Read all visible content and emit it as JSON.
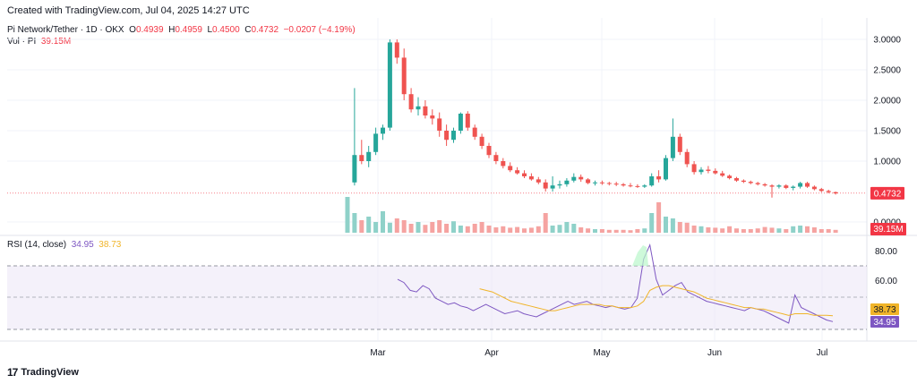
{
  "header": {
    "created": "Created with TradingView.com, Jul 04, 2025 14:27 UTC"
  },
  "legend": {
    "symbol": "Pi Network/Tether · 1D · OKX",
    "o_label": "O",
    "o_value": "0.4939",
    "h_label": "H",
    "h_value": "0.4959",
    "l_label": "L",
    "l_value": "0.4500",
    "c_label": "C",
    "c_value": "0.4732",
    "change": "−0.0207 (−4.19%)",
    "vol_label": "Vol · PI",
    "vol_value": "39.15M"
  },
  "rsi_legend": {
    "label": "RSI (14, close)",
    "rsi_value": "34.95",
    "ma_value": "38.73"
  },
  "brand": {
    "logo": "17",
    "name": "TradingView"
  },
  "colors": {
    "up": "#26a69a",
    "down": "#ef5350",
    "vol_up": "#8fd1c9",
    "vol_down": "#f5a3a1",
    "rsi": "#7e57c2",
    "rsi_ma": "#f0b429",
    "last_price": "#f23645"
  },
  "chart_data": {
    "type": "candlestick",
    "x_labels": [
      "Mar",
      "Apr",
      "May",
      "Jun",
      "Jul"
    ],
    "price_axis": [
      "3.0000",
      "2.5000",
      "2.0000",
      "1.5000",
      "1.0000",
      "0.0000"
    ],
    "price_range": [
      0,
      3
    ],
    "last_price_label": "0.4732",
    "volume_label": "39.15M",
    "rsi_axis": [
      "80.00",
      "60.00"
    ],
    "rsi_range": [
      30,
      85
    ],
    "rsi_badges": {
      "ma": "38.73",
      "rsi": "34.95"
    },
    "candles": [
      [
        0.0,
        0.0,
        0.0,
        0.0
      ],
      [
        0.65,
        2.2,
        0.6,
        1.1
      ],
      [
        1.1,
        1.35,
        0.95,
        1.0
      ],
      [
        1.0,
        1.25,
        0.9,
        1.15
      ],
      [
        1.15,
        1.55,
        1.1,
        1.45
      ],
      [
        1.45,
        1.6,
        1.35,
        1.55
      ],
      [
        1.55,
        3.0,
        1.5,
        2.95
      ],
      [
        2.95,
        3.0,
        2.6,
        2.7
      ],
      [
        2.7,
        2.85,
        2.0,
        2.1
      ],
      [
        2.1,
        2.2,
        1.8,
        1.85
      ],
      [
        1.85,
        2.05,
        1.75,
        1.9
      ],
      [
        1.9,
        2.0,
        1.7,
        1.75
      ],
      [
        1.75,
        1.85,
        1.6,
        1.7
      ],
      [
        1.7,
        1.8,
        1.4,
        1.5
      ],
      [
        1.5,
        1.6,
        1.25,
        1.35
      ],
      [
        1.35,
        1.55,
        1.3,
        1.5
      ],
      [
        1.5,
        1.8,
        1.45,
        1.78
      ],
      [
        1.78,
        1.82,
        1.5,
        1.55
      ],
      [
        1.55,
        1.6,
        1.35,
        1.4
      ],
      [
        1.4,
        1.45,
        1.2,
        1.25
      ],
      [
        1.25,
        1.3,
        1.05,
        1.1
      ],
      [
        1.1,
        1.15,
        0.95,
        1.0
      ],
      [
        1.0,
        1.05,
        0.88,
        0.92
      ],
      [
        0.92,
        0.98,
        0.82,
        0.85
      ],
      [
        0.85,
        0.9,
        0.78,
        0.8
      ],
      [
        0.8,
        0.85,
        0.72,
        0.75
      ],
      [
        0.75,
        0.8,
        0.68,
        0.7
      ],
      [
        0.7,
        0.74,
        0.62,
        0.65
      ],
      [
        0.65,
        0.7,
        0.5,
        0.55
      ],
      [
        0.55,
        0.75,
        0.5,
        0.6
      ],
      [
        0.6,
        0.68,
        0.55,
        0.62
      ],
      [
        0.62,
        0.72,
        0.58,
        0.68
      ],
      [
        0.68,
        0.8,
        0.65,
        0.74
      ],
      [
        0.74,
        0.78,
        0.66,
        0.7
      ],
      [
        0.7,
        0.72,
        0.62,
        0.64
      ],
      [
        0.64,
        0.68,
        0.6,
        0.65
      ],
      [
        0.65,
        0.68,
        0.61,
        0.64
      ],
      [
        0.64,
        0.66,
        0.6,
        0.63
      ],
      [
        0.63,
        0.66,
        0.59,
        0.62
      ],
      [
        0.62,
        0.64,
        0.58,
        0.6
      ],
      [
        0.6,
        0.64,
        0.57,
        0.59
      ],
      [
        0.59,
        0.62,
        0.56,
        0.58
      ],
      [
        0.58,
        0.62,
        0.56,
        0.6
      ],
      [
        0.6,
        0.8,
        0.58,
        0.75
      ],
      [
        0.75,
        0.85,
        0.65,
        0.7
      ],
      [
        0.7,
        1.1,
        0.68,
        1.05
      ],
      [
        1.05,
        1.7,
        1.0,
        1.4
      ],
      [
        1.4,
        1.45,
        1.1,
        1.15
      ],
      [
        1.15,
        1.2,
        0.9,
        0.95
      ],
      [
        0.95,
        1.0,
        0.78,
        0.82
      ],
      [
        0.82,
        0.9,
        0.78,
        0.86
      ],
      [
        0.86,
        0.92,
        0.8,
        0.84
      ],
      [
        0.84,
        0.88,
        0.78,
        0.8
      ],
      [
        0.8,
        0.84,
        0.74,
        0.76
      ],
      [
        0.76,
        0.78,
        0.7,
        0.72
      ],
      [
        0.72,
        0.74,
        0.66,
        0.68
      ],
      [
        0.68,
        0.7,
        0.64,
        0.66
      ],
      [
        0.66,
        0.68,
        0.62,
        0.64
      ],
      [
        0.64,
        0.66,
        0.6,
        0.62
      ],
      [
        0.62,
        0.64,
        0.58,
        0.6
      ],
      [
        0.6,
        0.62,
        0.4,
        0.58
      ],
      [
        0.58,
        0.62,
        0.55,
        0.6
      ],
      [
        0.6,
        0.62,
        0.54,
        0.56
      ],
      [
        0.56,
        0.6,
        0.52,
        0.58
      ],
      [
        0.58,
        0.66,
        0.55,
        0.64
      ],
      [
        0.64,
        0.66,
        0.56,
        0.58
      ],
      [
        0.58,
        0.6,
        0.52,
        0.54
      ],
      [
        0.54,
        0.56,
        0.49,
        0.51
      ],
      [
        0.51,
        0.53,
        0.47,
        0.49
      ],
      [
        0.49,
        0.5,
        0.45,
        0.47
      ]
    ],
    "volumes": [
      1.0,
      0.55,
      0.35,
      0.45,
      0.3,
      0.6,
      0.28,
      0.4,
      0.35,
      0.25,
      0.3,
      0.22,
      0.3,
      0.35,
      0.25,
      0.32,
      0.2,
      0.18,
      0.25,
      0.3,
      0.2,
      0.15,
      0.18,
      0.14,
      0.16,
      0.12,
      0.14,
      0.18,
      0.55,
      0.2,
      0.22,
      0.3,
      0.25,
      0.15,
      0.12,
      0.1,
      0.1,
      0.08,
      0.08,
      0.08,
      0.07,
      0.1,
      0.12,
      0.55,
      0.85,
      0.45,
      0.4,
      0.3,
      0.28,
      0.2,
      0.18,
      0.15,
      0.14,
      0.12,
      0.18,
      0.12,
      0.1,
      0.1,
      0.12,
      0.16,
      0.14,
      0.12,
      0.1,
      0.18,
      0.2,
      0.18,
      0.15,
      0.1,
      0.1,
      0.08
    ],
    "rsi": [
      62,
      60,
      55,
      54,
      58,
      56,
      50,
      48,
      46,
      47,
      45,
      44,
      42,
      44,
      46,
      44,
      42,
      40,
      41,
      42,
      40,
      39,
      38,
      40,
      42,
      44,
      46,
      48,
      46,
      47,
      48,
      46,
      45,
      44,
      45,
      44,
      43,
      44,
      50,
      75,
      84,
      62,
      52,
      55,
      58,
      60,
      54,
      52,
      50,
      48,
      47,
      46,
      45,
      44,
      43,
      42,
      44,
      43,
      42,
      40,
      38,
      36,
      34,
      52,
      44,
      42,
      40,
      38,
      36,
      35
    ],
    "rsi_ma": [
      null,
      null,
      null,
      null,
      null,
      null,
      null,
      null,
      null,
      null,
      null,
      null,
      null,
      56,
      55,
      54,
      52,
      50,
      48,
      47,
      46,
      45,
      44,
      43,
      42,
      42,
      43,
      44,
      45,
      46,
      46,
      46,
      46,
      45,
      45,
      44,
      44,
      44,
      45,
      48,
      55,
      57,
      58,
      58,
      57,
      56,
      55,
      54,
      52,
      50,
      49,
      48,
      47,
      46,
      45,
      44,
      44,
      43,
      43,
      42,
      41,
      40,
      39,
      40,
      40,
      40,
      39,
      39,
      39,
      38.73
    ]
  }
}
